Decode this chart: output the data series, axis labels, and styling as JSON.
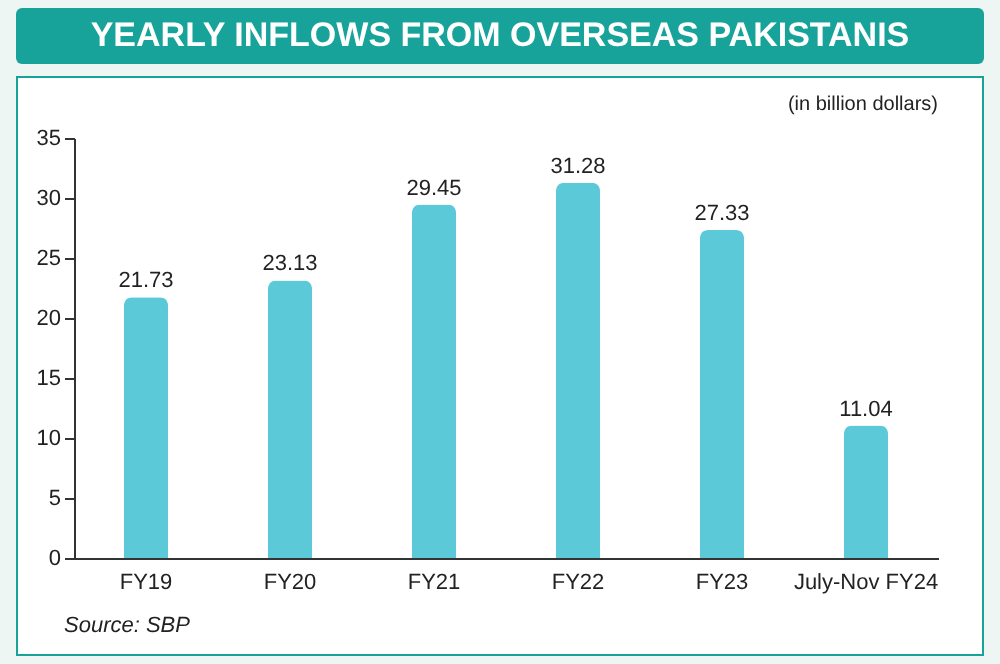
{
  "chart_data": {
    "type": "bar",
    "title": "YEARLY INFLOWS FROM OVERSEAS PAKISTANIS",
    "subtitle": "(in billion dollars)",
    "annotations": [
      "Source: SBP"
    ],
    "categories": [
      "FY19",
      "FY20",
      "FY21",
      "FY22",
      "FY23",
      "July-Nov FY24"
    ],
    "values": [
      21.73,
      23.13,
      29.45,
      31.28,
      27.33,
      11.04
    ],
    "color": "#5cc9d9",
    "ylim": [
      0,
      35
    ],
    "yticks": [
      0,
      5,
      10,
      15,
      20,
      25,
      30,
      35
    ],
    "data_labels": true
  }
}
